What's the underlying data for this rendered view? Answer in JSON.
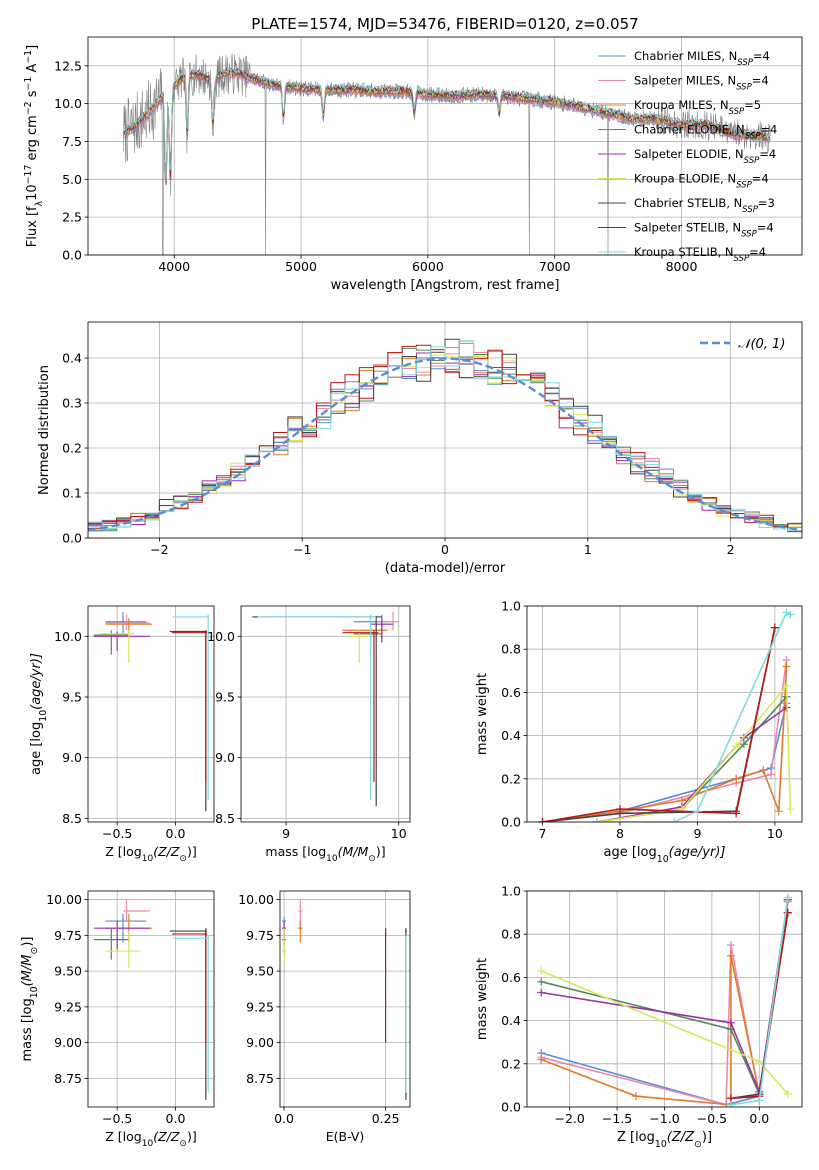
{
  "colors": {
    "chabrier_miles": "#5b8bd8",
    "salpeter_miles": "#e88ab0",
    "kroupa_miles": "#e07b2c",
    "chabrier_elodie": "#4f8c5a",
    "salpeter_elodie": "#9b2fa8",
    "kroupa_elodie": "#d8e65a",
    "chabrier_stelib": "#444444",
    "salpeter_stelib": "#b81818",
    "kroupa_stelib": "#7fdcdc"
  },
  "chart_data": [
    {
      "id": "spectrum",
      "type": "line",
      "title": "PLATE=1574, MJD=53476, FIBERID=0120, z=0.057",
      "xlabel": "wavelength [Angstrom, rest frame]",
      "ylabel_parts": [
        "Flux [f",
        "λ",
        "10",
        "−17",
        " erg cm",
        "−2",
        " s",
        "−1",
        " A",
        "−1",
        "]"
      ],
      "xlim": [
        3320,
        8950
      ],
      "ylim": [
        0,
        14.4
      ],
      "xticks": [
        4000,
        5000,
        6000,
        7000,
        8000
      ],
      "xtick_labels": [
        "4000",
        "5000",
        "6000",
        "7000",
        "8000"
      ],
      "yticks": [
        0,
        2.5,
        5.0,
        7.5,
        10.0,
        12.5
      ],
      "ytick_labels": [
        "0.0",
        "2.5",
        "5.0",
        "7.5",
        "10.0",
        "12.5"
      ],
      "legend_position": "upper-right",
      "legend": [
        {
          "text": "Chabrier MILES, N",
          "sub": "SSP",
          "tail": "=4",
          "color_key": "chabrier_miles"
        },
        {
          "text": "Salpeter MILES, N",
          "sub": "SSP",
          "tail": "=4",
          "color_key": "salpeter_miles"
        },
        {
          "text": "Kroupa MILES, N",
          "sub": "SSP",
          "tail": "=5",
          "color_key": "kroupa_miles"
        },
        {
          "text": "Chabrier ELODIE, N",
          "sub": "SSP",
          "tail": "=4",
          "color_key": "chabrier_elodie"
        },
        {
          "text": "Salpeter ELODIE, N",
          "sub": "SSP",
          "tail": "=4",
          "color_key": "salpeter_elodie"
        },
        {
          "text": "Kroupa ELODIE, N",
          "sub": "SSP",
          "tail": "=4",
          "color_key": "kroupa_elodie"
        },
        {
          "text": "Chabrier STELIB, N",
          "sub": "SSP",
          "tail": "=3",
          "color_key": "chabrier_stelib"
        },
        {
          "text": "Salpeter STELIB, N",
          "sub": "SSP",
          "tail": "=4",
          "color_key": "salpeter_stelib"
        },
        {
          "text": "Kroupa STELIB, N",
          "sub": "SSP",
          "tail": "=4",
          "color_key": "kroupa_stelib"
        }
      ],
      "data_color": "#808080",
      "continuum": {
        "x": [
          3600,
          3700,
          3800,
          3900,
          4000,
          4100,
          4200,
          4300,
          4400,
          4500,
          4600,
          4800,
          5000,
          5200,
          5400,
          5600,
          5800,
          6000,
          6200,
          6400,
          6600,
          6800,
          7000,
          7200,
          7400,
          7600,
          7800,
          8000,
          8200,
          8400,
          8600,
          8700
        ],
        "y": [
          8.0,
          8.6,
          9.4,
          10.4,
          11.2,
          11.9,
          11.9,
          11.5,
          12.0,
          12.0,
          11.7,
          11.2,
          11.0,
          10.9,
          10.9,
          10.8,
          10.8,
          10.6,
          10.5,
          10.6,
          10.5,
          10.3,
          10.1,
          9.8,
          9.4,
          9.0,
          9.0,
          8.6,
          8.6,
          8.0,
          7.9,
          7.7
        ]
      },
      "absorption": [
        {
          "x": 3934,
          "y": 4.5
        },
        {
          "x": 3970,
          "y": 5.0
        },
        {
          "x": 4102,
          "y": 7.9
        },
        {
          "x": 4305,
          "y": 8.5
        },
        {
          "x": 4861,
          "y": 9.0
        },
        {
          "x": 5175,
          "y": 9.2
        },
        {
          "x": 5893,
          "y": 9.4
        },
        {
          "x": 6563,
          "y": 9.4
        }
      ],
      "dropouts": [
        {
          "x": 3910,
          "y": 0.0
        },
        {
          "x": 4720,
          "y": 0.0
        },
        {
          "x": 6800,
          "y": 0.0
        },
        {
          "x": 7420,
          "y": 0.0
        }
      ]
    },
    {
      "id": "residuals",
      "type": "histogram",
      "xlabel": "(data-model)/error",
      "ylabel": "Normed distribution",
      "xlim": [
        -2.5,
        2.5
      ],
      "ylim": [
        0,
        0.48
      ],
      "xticks": [
        -2,
        -1,
        0,
        1,
        2
      ],
      "xtick_labels": [
        "−2",
        "−1",
        "0",
        "1",
        "2"
      ],
      "yticks": [
        0,
        0.1,
        0.2,
        0.3,
        0.4
      ],
      "ytick_labels": [
        "0.0",
        "0.1",
        "0.2",
        "0.3",
        "0.4"
      ],
      "legend_position": "upper-right",
      "legend_label": "𝒩(0, 1)",
      "gaussian_color": "#5b8bd8",
      "bins": [
        -2.5,
        -2.4,
        -2.3,
        -2.2,
        -2.1,
        -2.0,
        -1.9,
        -1.8,
        -1.7,
        -1.6,
        -1.5,
        -1.4,
        -1.3,
        -1.2,
        -1.1,
        -1.0,
        -0.9,
        -0.8,
        -0.7,
        -0.6,
        -0.5,
        -0.4,
        -0.3,
        -0.2,
        -0.1,
        0.0,
        0.1,
        0.2,
        0.3,
        0.4,
        0.5,
        0.6,
        0.7,
        0.8,
        0.9,
        1.0,
        1.1,
        1.2,
        1.3,
        1.4,
        1.5,
        1.6,
        1.7,
        1.8,
        1.9,
        2.0,
        2.1,
        2.2,
        2.3,
        2.4,
        2.5
      ]
    },
    {
      "id": "age_vs_z",
      "type": "scatter",
      "xlabel_parts": [
        "Z [log",
        "10",
        "(Z/Z",
        "⊙",
        ")]"
      ],
      "ylabel_parts": [
        "age  [log",
        "10",
        "(age/yr)]"
      ],
      "xlim": [
        -0.75,
        0.33
      ],
      "ylim": [
        8.47,
        10.25
      ],
      "xticks": [
        -0.5,
        0.0
      ],
      "xtick_labels": [
        "−0.5",
        "0.0"
      ],
      "yticks": [
        8.5,
        9.0,
        9.5,
        10.0
      ],
      "ytick_labels": [
        "8.5",
        "9.0",
        "9.5",
        "10.0"
      ]
    },
    {
      "id": "age_vs_mass",
      "type": "scatter",
      "xlabel_parts": [
        "mass [log",
        "10",
        "(M/M",
        "⊙",
        ")]"
      ],
      "xlim": [
        8.6,
        10.1
      ],
      "ylim": [
        8.47,
        10.25
      ],
      "xticks": [
        9,
        10
      ],
      "xtick_labels": [
        "9",
        "10"
      ],
      "yticks": [
        8.5,
        9.0,
        9.5,
        10.0
      ],
      "ytick_labels": [
        "8.5",
        "9.0",
        "9.5",
        "10.0"
      ]
    },
    {
      "id": "weight_vs_age",
      "type": "line",
      "xlabel_parts": [
        "age  [log",
        "10",
        "(age/yr)]"
      ],
      "ylabel": "mass weight",
      "xlim": [
        6.8,
        10.35
      ],
      "ylim": [
        0,
        1.0
      ],
      "xticks": [
        7,
        8,
        9,
        10
      ],
      "xtick_labels": [
        "7",
        "8",
        "9",
        "10"
      ],
      "yticks": [
        0,
        0.2,
        0.4,
        0.6,
        0.8,
        1.0
      ],
      "ytick_labels": [
        "0.0",
        "0.2",
        "0.4",
        "0.6",
        "0.8",
        "1.0"
      ],
      "series": [
        {
          "color_key": "chabrier_miles",
          "x": [
            7.0,
            8.0,
            9.5,
            9.95,
            10.15
          ],
          "y": [
            0.0,
            0.05,
            0.2,
            0.25,
            0.55
          ]
        },
        {
          "color_key": "salpeter_miles",
          "x": [
            7.0,
            8.0,
            9.5,
            9.95,
            10.15
          ],
          "y": [
            0.0,
            0.04,
            0.18,
            0.22,
            0.75
          ]
        },
        {
          "color_key": "kroupa_miles",
          "x": [
            7.0,
            8.0,
            8.8,
            9.5,
            9.85,
            10.05,
            10.15
          ],
          "y": [
            0.0,
            0.05,
            0.1,
            0.2,
            0.24,
            0.05,
            0.72
          ]
        },
        {
          "color_key": "chabrier_elodie",
          "x": [
            7.7,
            8.8,
            9.6,
            10.15
          ],
          "y": [
            0.0,
            0.06,
            0.36,
            0.58
          ]
        },
        {
          "color_key": "salpeter_elodie",
          "x": [
            7.7,
            8.8,
            9.6,
            10.15
          ],
          "y": [
            0.0,
            0.07,
            0.39,
            0.53
          ]
        },
        {
          "color_key": "kroupa_elodie",
          "x": [
            7.7,
            8.8,
            9.5,
            10.15,
            10.2
          ],
          "y": [
            0.0,
            0.06,
            0.35,
            0.63,
            0.06
          ]
        },
        {
          "color_key": "chabrier_stelib",
          "x": [
            7.0,
            8.0,
            9.5,
            10.0
          ],
          "y": [
            0.0,
            0.04,
            0.05,
            0.9
          ]
        },
        {
          "color_key": "salpeter_stelib",
          "x": [
            7.0,
            8.0,
            9.5,
            10.0
          ],
          "y": [
            0.0,
            0.06,
            0.04,
            0.9
          ]
        },
        {
          "color_key": "kroupa_stelib",
          "x": [
            7.7,
            8.7,
            9.0,
            10.15,
            10.2
          ],
          "y": [
            0.0,
            0.0,
            0.05,
            0.97,
            0.96
          ]
        }
      ]
    },
    {
      "id": "mass_vs_z",
      "type": "scatter",
      "xlabel_parts": [
        "Z [log",
        "10",
        "(Z/Z",
        "⊙",
        ")]"
      ],
      "ylabel_parts": [
        "mass [log",
        "10",
        "(M/M",
        "⊙",
        ")]"
      ],
      "xlim": [
        -0.75,
        0.33
      ],
      "ylim": [
        8.55,
        10.06
      ],
      "xticks": [
        -0.5,
        0.0
      ],
      "xtick_labels": [
        "−0.5",
        "0.0"
      ],
      "yticks": [
        8.75,
        9.0,
        9.25,
        9.5,
        9.75,
        10.0
      ],
      "ytick_labels": [
        "8.75",
        "9.00",
        "9.25",
        "9.50",
        "9.75",
        "10.00"
      ]
    },
    {
      "id": "mass_vs_ebv",
      "type": "scatter",
      "xlabel": "E(B-V)",
      "xlim": [
        -0.01,
        0.31
      ],
      "ylim": [
        8.55,
        10.06
      ],
      "xticks": [
        0.0,
        0.25
      ],
      "xtick_labels": [
        "0.0",
        "0.25"
      ],
      "yticks": [
        8.75,
        9.0,
        9.25,
        9.5,
        9.75,
        10.0
      ],
      "ytick_labels": [
        "8.75",
        "9.00",
        "9.25",
        "9.50",
        "9.75",
        "10.00"
      ]
    },
    {
      "id": "weight_vs_z",
      "type": "line",
      "xlabel_parts": [
        "Z [log",
        "10",
        "(Z/Z",
        "⊙",
        ")]"
      ],
      "ylabel": "mass weight",
      "xlim": [
        -2.45,
        0.45
      ],
      "ylim": [
        0,
        1.0
      ],
      "xticks": [
        -2.0,
        -1.5,
        -1.0,
        -0.5,
        0.0
      ],
      "xtick_labels": [
        "−2.0",
        "−1.5",
        "−1.0",
        "−0.5",
        "0.0"
      ],
      "yticks": [
        0,
        0.2,
        0.4,
        0.6,
        0.8,
        1.0
      ],
      "ytick_labels": [
        "0.0",
        "0.2",
        "0.4",
        "0.6",
        "0.8",
        "1.0"
      ],
      "series": [
        {
          "color_key": "chabrier_miles",
          "x": [
            -2.3,
            -0.35,
            0.0,
            0.3
          ],
          "y": [
            0.25,
            0.01,
            0.05,
            0.96
          ]
        },
        {
          "color_key": "salpeter_miles",
          "x": [
            -2.3,
            -0.35,
            -0.3,
            0.0,
            0.3
          ],
          "y": [
            0.23,
            0.01,
            0.75,
            0.05,
            0.96
          ]
        },
        {
          "color_key": "kroupa_miles",
          "x": [
            -2.3,
            -1.3,
            -0.3,
            -0.3,
            0.0,
            0.3
          ],
          "y": [
            0.22,
            0.05,
            0.01,
            0.7,
            0.06,
            0.95
          ]
        },
        {
          "color_key": "chabrier_elodie",
          "x": [
            -2.3,
            -0.3,
            0.0,
            0.3
          ],
          "y": [
            0.58,
            0.36,
            0.06,
            0.96
          ]
        },
        {
          "color_key": "salpeter_elodie",
          "x": [
            -2.3,
            -0.3,
            0.0,
            0.3
          ],
          "y": [
            0.53,
            0.39,
            0.07,
            0.96
          ]
        },
        {
          "color_key": "kroupa_elodie",
          "x": [
            -2.3,
            0.0,
            0.3
          ],
          "y": [
            0.63,
            0.21,
            0.06
          ]
        },
        {
          "color_key": "chabrier_stelib",
          "x": [
            -0.3,
            0.0,
            0.3
          ],
          "y": [
            0.04,
            0.06,
            0.9
          ]
        },
        {
          "color_key": "salpeter_stelib",
          "x": [
            -0.3,
            0.0,
            0.3
          ],
          "y": [
            0.04,
            0.05,
            0.9
          ]
        },
        {
          "color_key": "kroupa_stelib",
          "x": [
            -0.3,
            0.0,
            0.3
          ],
          "y": [
            0.01,
            0.03,
            0.97
          ]
        }
      ]
    }
  ]
}
